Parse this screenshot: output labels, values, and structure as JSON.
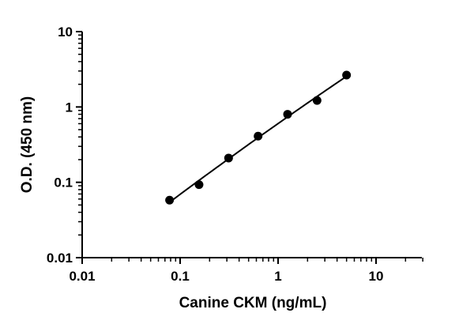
{
  "chart_data": {
    "type": "scatter",
    "xlabel": "Canine CKM (ng/mL)",
    "ylabel": "O.D. (450 nm)",
    "xscale": "log",
    "yscale": "log",
    "xlim": [
      0.01,
      30
    ],
    "ylim": [
      0.01,
      10
    ],
    "x_ticks": [
      "0.01",
      "0.1",
      "1",
      "10"
    ],
    "y_ticks": [
      "0.01",
      "0.1",
      "1",
      "10"
    ],
    "grid": false,
    "series": [
      {
        "x": [
          0.078,
          0.156,
          0.3125,
          0.625,
          1.25,
          2.5,
          5.0
        ],
        "y": [
          0.058,
          0.093,
          0.21,
          0.41,
          0.8,
          1.22,
          2.65
        ],
        "marker": "circle",
        "color": "#000000",
        "fit_curve": true
      }
    ]
  }
}
